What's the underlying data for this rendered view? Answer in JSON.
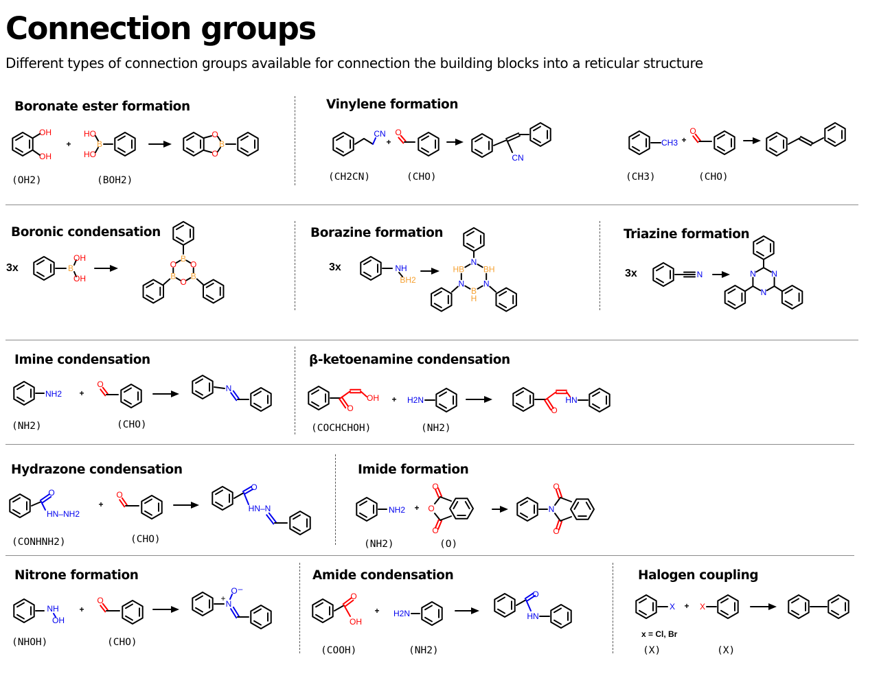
{
  "title": "Connection groups",
  "subtitle": "Different types of connection groups available for connection the building blocks into a reticular structure",
  "colors": {
    "oxygen": "#ff0000",
    "nitrogen": "#0000ee",
    "boron": "#f5a030",
    "bond": "#000000"
  },
  "sections": {
    "boronate_ester": {
      "title": "Boronate ester formation",
      "codes": [
        "(OH2)",
        "(BOH2)"
      ]
    },
    "vinylene": {
      "title": "Vinylene formation",
      "codes": [
        "(CH2CN)",
        "(CHO)",
        "(CH3)",
        "(CHO)"
      ]
    },
    "boronic": {
      "title": "Boronic condensation",
      "multiplier": "3x"
    },
    "borazine": {
      "title": "Borazine formation",
      "multiplier": "3x"
    },
    "triazine": {
      "title": "Triazine formation",
      "multiplier": "3x"
    },
    "imine": {
      "title": "Imine condensation",
      "codes": [
        "(NH2)",
        "(CHO)"
      ]
    },
    "ketoenamine": {
      "title": "β-ketoenamine condensation",
      "codes": [
        "(COCHCHOH)",
        "(NH2)"
      ]
    },
    "hydrazone": {
      "title": "Hydrazone condensation",
      "codes": [
        "(CONHNH2)",
        "(CHO)"
      ]
    },
    "imide": {
      "title": "Imide formation",
      "codes": [
        "(NH2)",
        "(O)"
      ]
    },
    "nitrone": {
      "title": "Nitrone formation",
      "codes": [
        "(NHOH)",
        "(CHO)"
      ]
    },
    "amide": {
      "title": "Amide condensation",
      "codes": [
        "(COOH)",
        "(NH2)"
      ]
    },
    "halogen": {
      "title": "Halogen coupling",
      "codes": [
        "(X)",
        "(X)"
      ],
      "note": "x = Cl, Br"
    }
  },
  "atoms": {
    "OH": "OH",
    "HO": "HO",
    "O": "O",
    "B": "B",
    "N": "N",
    "CN": "CN",
    "CH3": "CH3",
    "NH": "NH",
    "NH2": "NH2",
    "BH2": "BH2",
    "HB": "HB",
    "BH": "BH",
    "H": "H",
    "HN": "HN",
    "H2N": "H2N",
    "HN_NH2": "HN–NH2",
    "HN_N": "HN–N",
    "X": "X",
    "plus": "+",
    "minus": "–"
  }
}
